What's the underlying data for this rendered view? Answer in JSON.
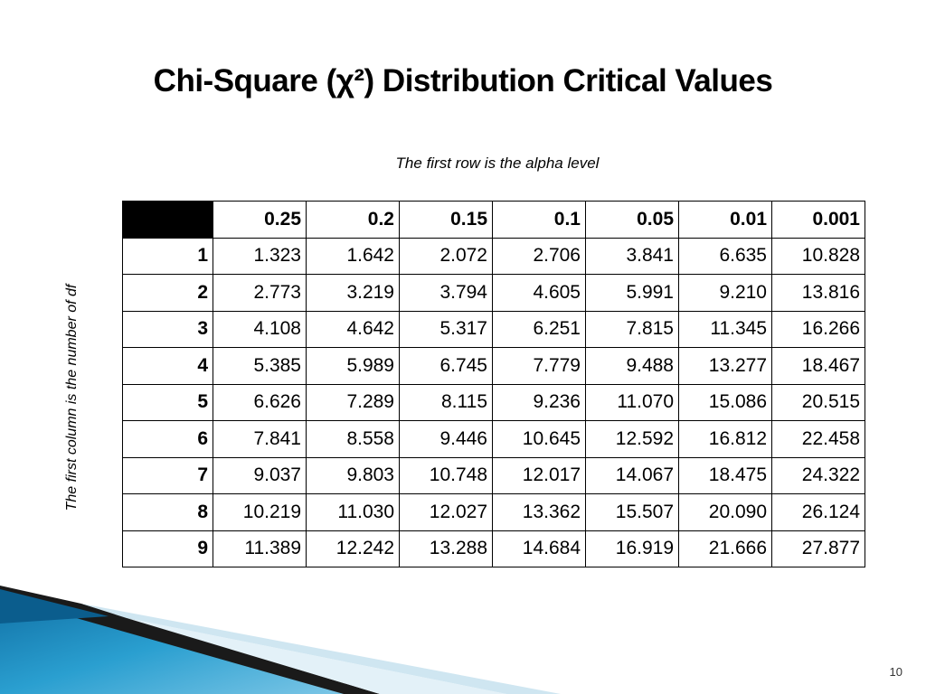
{
  "slide": {
    "title": "Chi-Square (χ²) Distribution Critical Values",
    "subtitle": "The first row is the alpha level",
    "side_note": "The first column is the number of df",
    "page_number": "10"
  },
  "table": {
    "alpha_levels": [
      "0.25",
      "0.2",
      "0.15",
      "0.1",
      "0.05",
      "0.01",
      "0.001"
    ],
    "rows": [
      {
        "df": "1",
        "values": [
          "1.323",
          "1.642",
          "2.072",
          "2.706",
          "3.841",
          "6.635",
          "10.828"
        ]
      },
      {
        "df": "2",
        "values": [
          "2.773",
          "3.219",
          "3.794",
          "4.605",
          "5.991",
          "9.210",
          "13.816"
        ]
      },
      {
        "df": "3",
        "values": [
          "4.108",
          "4.642",
          "5.317",
          "6.251",
          "7.815",
          "11.345",
          "16.266"
        ]
      },
      {
        "df": "4",
        "values": [
          "5.385",
          "5.989",
          "6.745",
          "7.779",
          "9.488",
          "13.277",
          "18.467"
        ]
      },
      {
        "df": "5",
        "values": [
          "6.626",
          "7.289",
          "8.115",
          "9.236",
          "11.070",
          "15.086",
          "20.515"
        ]
      },
      {
        "df": "6",
        "values": [
          "7.841",
          "8.558",
          "9.446",
          "10.645",
          "12.592",
          "16.812",
          "22.458"
        ]
      },
      {
        "df": "7",
        "values": [
          "9.037",
          "9.803",
          "10.748",
          "12.017",
          "14.067",
          "18.475",
          "24.322"
        ]
      },
      {
        "df": "8",
        "values": [
          "10.219",
          "11.030",
          "12.027",
          "13.362",
          "15.507",
          "20.090",
          "26.124"
        ]
      },
      {
        "df": "9",
        "values": [
          "11.389",
          "12.242",
          "13.288",
          "14.684",
          "16.919",
          "21.666",
          "27.877"
        ]
      }
    ]
  },
  "colors": {
    "corner_fill": "#000000",
    "accent_blue": "#1f8fbf",
    "light_blue": "#bfe0ee"
  }
}
